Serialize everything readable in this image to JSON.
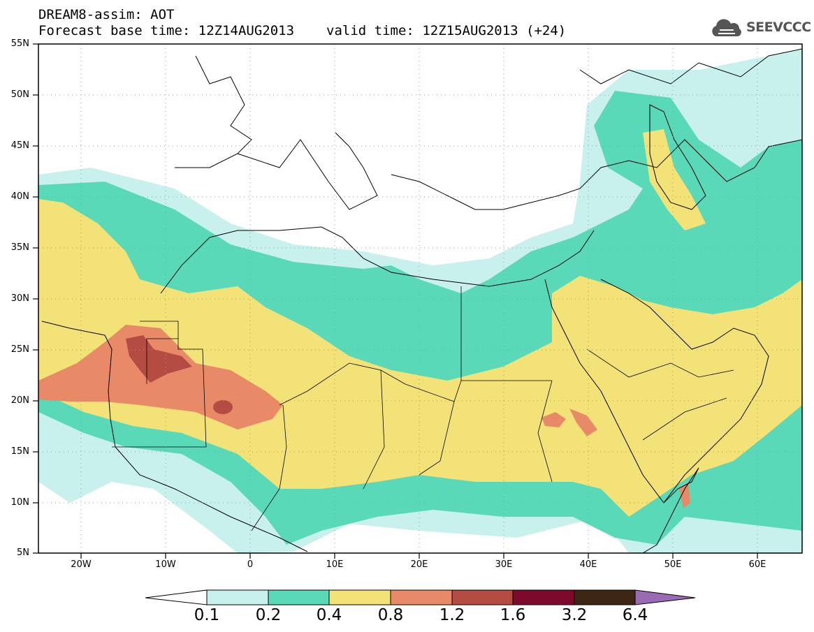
{
  "header": {
    "title_line1": "DREAM8-assim: AOT",
    "base_time": "Forecast base time: 12Z14AUG2013",
    "valid_time": "valid time: 12Z15AUG2013 (+24)",
    "logo_text": "SEEVCCC"
  },
  "axes": {
    "lat_labels": [
      "55N",
      "50N",
      "45N",
      "40N",
      "35N",
      "30N",
      "25N",
      "20N",
      "15N",
      "10N",
      "5N"
    ],
    "lon_labels": [
      "20W",
      "10W",
      "0",
      "10E",
      "20E",
      "30E",
      "40E",
      "50E",
      "60E"
    ]
  },
  "legend": {
    "labels": [
      "0.1",
      "0.2",
      "0.4",
      "0.8",
      "1.2",
      "1.6",
      "3.2",
      "6.4"
    ],
    "colors": [
      "#ffffff",
      "#c8f0ec",
      "#5ad9b9",
      "#f3e277",
      "#e88a68",
      "#b44c44",
      "#7d0a2c",
      "#3e2614",
      "#9a6ab5"
    ]
  },
  "map": {
    "extent": {
      "lon_min": -25,
      "lon_max": 65,
      "lat_min": 5,
      "lat_max": 55
    },
    "field": "AOT"
  }
}
